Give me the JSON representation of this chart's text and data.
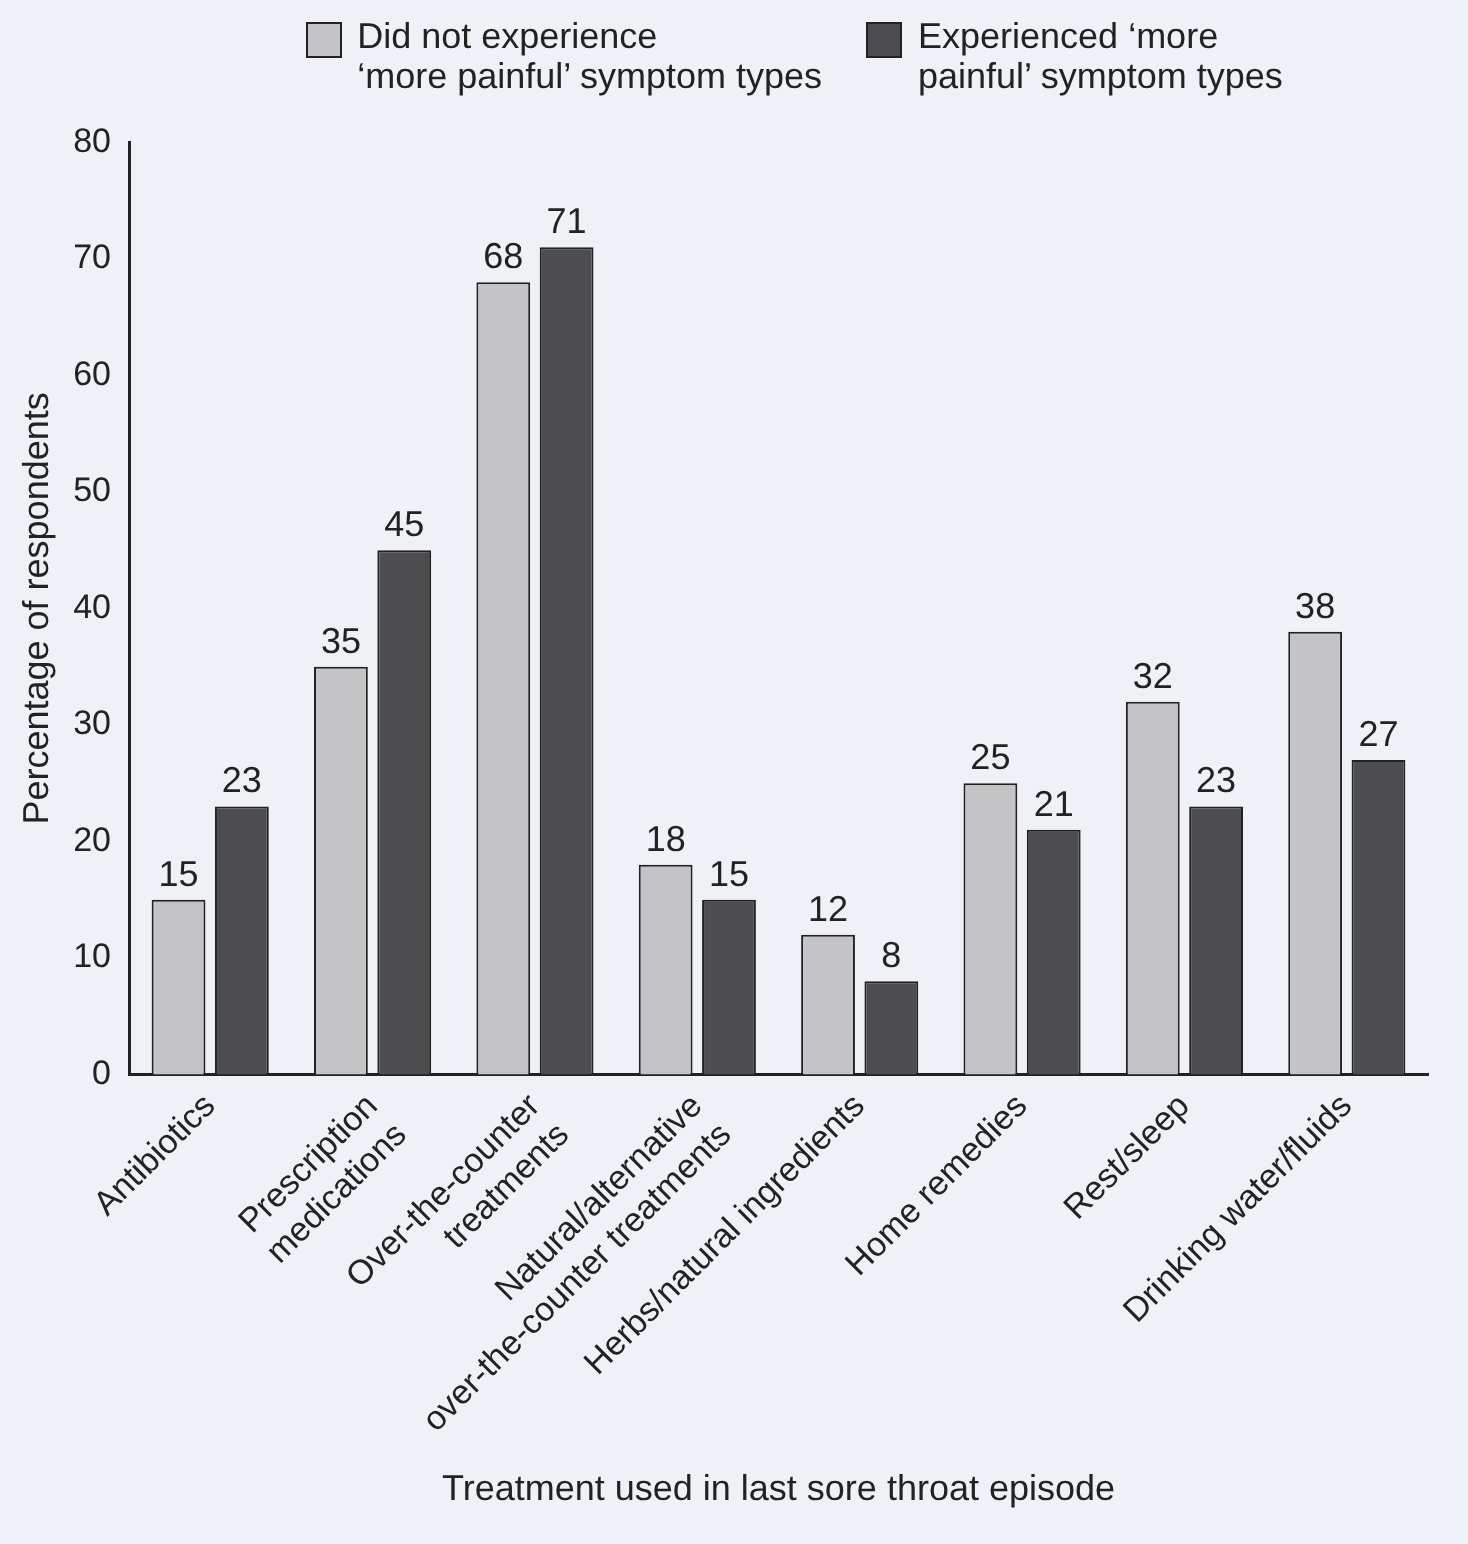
{
  "chart_data": {
    "type": "bar",
    "xlabel": "Treatment used in last sore throat episode",
    "ylabel": "Percentage of respondents",
    "categories": [
      "Antibiotics",
      "Prescription\nmedications",
      "Over-the-counter\ntreatments",
      "Natural/alternative\nover-the-counter treatments",
      "Herbs/natural ingredients",
      "Home remedies",
      "Rest/sleep",
      "Drinking water/fluids"
    ],
    "series": [
      {
        "name": "Did not experience\n‘more painful’ symptom types",
        "color": "#c4c4c6",
        "values": [
          15,
          35,
          68,
          18,
          12,
          25,
          32,
          38
        ]
      },
      {
        "name": "Experienced ‘more\npainful’ symptom types",
        "color": "#4d4d4f",
        "values": [
          23,
          45,
          71,
          15,
          8,
          21,
          23,
          27
        ]
      }
    ],
    "ylim": [
      0,
      80
    ],
    "yticks": [
      0,
      10,
      20,
      30,
      40,
      50,
      60,
      70,
      80
    ],
    "grid": false,
    "legend": "top",
    "data_labels": true
  }
}
